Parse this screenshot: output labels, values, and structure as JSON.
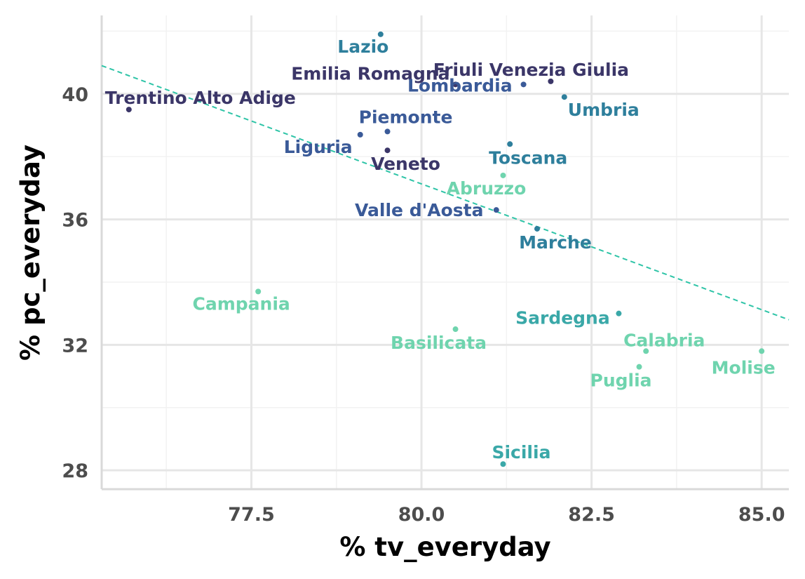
{
  "chart_data": {
    "type": "scatter",
    "title": "",
    "xlabel": "% tv_everyday",
    "ylabel": "% pc_everyday",
    "xlim": [
      75.3,
      85.4
    ],
    "ylim": [
      27.4,
      42.5
    ],
    "xticks": [
      77.5,
      80.0,
      82.5,
      85.0
    ],
    "xtick_labels": [
      "77.5",
      "80.0",
      "82.5",
      "85.0"
    ],
    "yticks": [
      28,
      32,
      36,
      40
    ],
    "ytick_labels": [
      "28",
      "32",
      "36",
      "40"
    ],
    "grid": true,
    "legend": "none",
    "trendline": {
      "style": "dashed",
      "color": "#2ec4a7",
      "x": [
        75.3,
        85.4
      ],
      "y": [
        40.9,
        32.8
      ]
    },
    "points": [
      {
        "name": "Trentino Alto Adige",
        "x": 75.7,
        "y": 39.5,
        "color": "#3b3668"
      },
      {
        "name": "Emilia Romagna",
        "x": 80.5,
        "y": 40.3,
        "color": "#3b3668"
      },
      {
        "name": "Friuli Venezia Giulia",
        "x": 81.9,
        "y": 40.4,
        "color": "#3b3668"
      },
      {
        "name": "Veneto",
        "x": 79.5,
        "y": 38.2,
        "color": "#3b3668"
      },
      {
        "name": "Lazio",
        "x": 79.4,
        "y": 41.9,
        "color": "#2e7f9c"
      },
      {
        "name": "Lombardia",
        "x": 81.5,
        "y": 40.3,
        "color": "#3a5a98"
      },
      {
        "name": "Umbria",
        "x": 82.1,
        "y": 39.9,
        "color": "#2e7f9c"
      },
      {
        "name": "Piemonte",
        "x": 79.5,
        "y": 38.8,
        "color": "#3a5a98"
      },
      {
        "name": "Liguria",
        "x": 79.1,
        "y": 38.7,
        "color": "#3a5a98"
      },
      {
        "name": "Toscana",
        "x": 81.3,
        "y": 38.4,
        "color": "#2e7f9c"
      },
      {
        "name": "Abruzzo",
        "x": 81.2,
        "y": 37.4,
        "color": "#6fd4ae"
      },
      {
        "name": "Valle d'Aosta",
        "x": 81.1,
        "y": 36.3,
        "color": "#3a5a98"
      },
      {
        "name": "Marche",
        "x": 81.7,
        "y": 35.7,
        "color": "#2e7f9c"
      },
      {
        "name": "Campania",
        "x": 77.6,
        "y": 33.7,
        "color": "#6fd4ae"
      },
      {
        "name": "Sardegna",
        "x": 82.9,
        "y": 33.0,
        "color": "#3aa8a8"
      },
      {
        "name": "Basilicata",
        "x": 80.5,
        "y": 32.5,
        "color": "#6fd4ae"
      },
      {
        "name": "Calabria",
        "x": 83.3,
        "y": 31.8,
        "color": "#6fd4ae"
      },
      {
        "name": "Molise",
        "x": 85.0,
        "y": 31.8,
        "color": "#6fd4ae"
      },
      {
        "name": "Puglia",
        "x": 83.2,
        "y": 31.3,
        "color": "#6fd4ae"
      },
      {
        "name": "Sicilia",
        "x": 81.2,
        "y": 28.2,
        "color": "#3aa8a8"
      }
    ]
  }
}
